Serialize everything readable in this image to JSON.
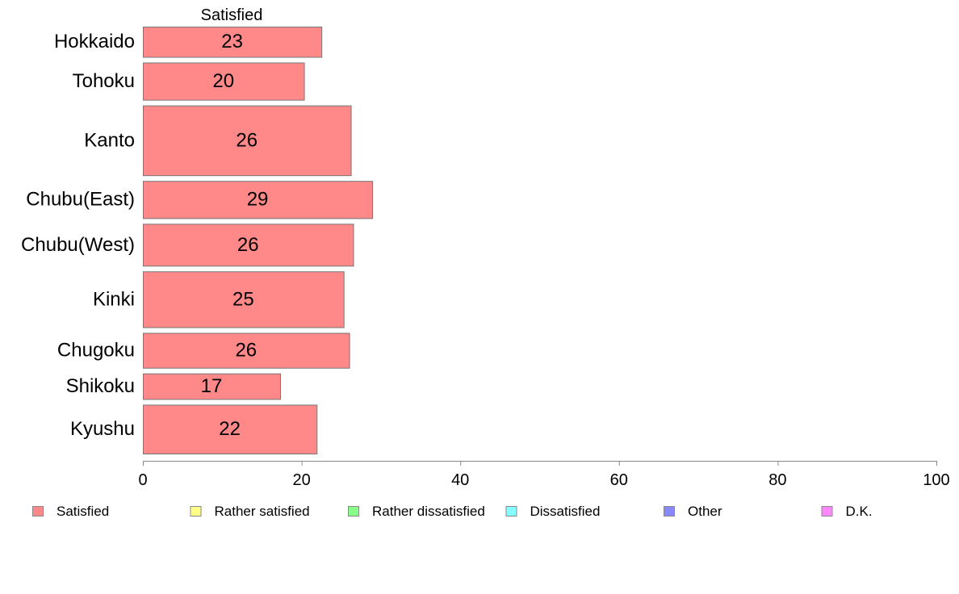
{
  "chart_data": {
    "type": "bar",
    "orientation": "horizontal",
    "series_header": "Satisfied",
    "categories": [
      "Hokkaido",
      "Tohoku",
      "Kanto",
      "Chubu(East)",
      "Chubu(West)",
      "Kinki",
      "Chugoku",
      "Shikoku",
      "Kyushu"
    ],
    "values": [
      22.5,
      20.3,
      26.2,
      28.9,
      26.5,
      25.3,
      26.0,
      17.3,
      21.9
    ],
    "value_labels": [
      "23",
      "20",
      "26",
      "29",
      "26",
      "25",
      "26",
      "17",
      "22"
    ],
    "bar_weights": [
      1.3,
      1.6,
      3.0,
      1.6,
      1.8,
      2.4,
      1.5,
      1.1,
      2.1
    ],
    "xlim": [
      0,
      100
    ],
    "xticks": [
      "0",
      "20",
      "40",
      "60",
      "80",
      "100"
    ],
    "grid": false,
    "legend_position": "bottom",
    "legend": [
      {
        "label": "Satisfied",
        "color": "#ff8888"
      },
      {
        "label": "Rather satisfied",
        "color": "#ffff88"
      },
      {
        "label": "Rather dissatisfied",
        "color": "#88ff88"
      },
      {
        "label": "Dissatisfied",
        "color": "#88ffff"
      },
      {
        "label": "Other",
        "color": "#8888ff"
      },
      {
        "label": "D.K.",
        "color": "#ff88ff"
      }
    ],
    "bar_color": "#ff8888"
  }
}
